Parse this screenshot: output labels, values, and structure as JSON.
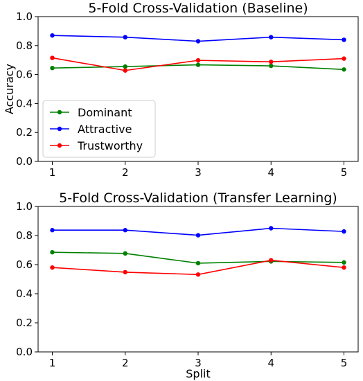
{
  "chart_data": [
    {
      "type": "line",
      "title": "5-Fold Cross-Validation (Baseline)",
      "xlabel": "",
      "ylabel": "Accuracy",
      "x": [
        1,
        2,
        3,
        4,
        5
      ],
      "xticks": [
        "1",
        "2",
        "3",
        "4",
        "5"
      ],
      "yticks": [
        "0.0",
        "0.2",
        "0.4",
        "0.6",
        "0.8",
        "1.0"
      ],
      "ylim": [
        0,
        1
      ],
      "grid": false,
      "legend": "lower-left",
      "series": [
        {
          "name": "Dominant",
          "color": "#008000",
          "values": [
            0.645,
            0.655,
            0.667,
            0.66,
            0.635
          ]
        },
        {
          "name": "Attractive",
          "color": "#0000ff",
          "values": [
            0.87,
            0.858,
            0.83,
            0.858,
            0.84
          ]
        },
        {
          "name": "Trustworthy",
          "color": "#ff0000",
          "values": [
            0.715,
            0.628,
            0.698,
            0.688,
            0.71
          ]
        }
      ]
    },
    {
      "type": "line",
      "title": "5-Fold Cross-Validation (Transfer Learning)",
      "xlabel": "Split",
      "ylabel": "",
      "x": [
        1,
        2,
        3,
        4,
        5
      ],
      "xticks": [
        "1",
        "2",
        "3",
        "4",
        "5"
      ],
      "yticks": [
        "0.0",
        "0.2",
        "0.4",
        "0.6",
        "0.8",
        "1.0"
      ],
      "ylim": [
        0,
        1
      ],
      "grid": false,
      "legend": "none",
      "series": [
        {
          "name": "Dominant",
          "color": "#008000",
          "values": [
            0.685,
            0.677,
            0.61,
            0.622,
            0.615
          ]
        },
        {
          "name": "Attractive",
          "color": "#0000ff",
          "values": [
            0.837,
            0.837,
            0.802,
            0.85,
            0.828
          ]
        },
        {
          "name": "Trustworthy",
          "color": "#ff0000",
          "values": [
            0.58,
            0.548,
            0.532,
            0.63,
            0.58
          ]
        }
      ]
    }
  ]
}
